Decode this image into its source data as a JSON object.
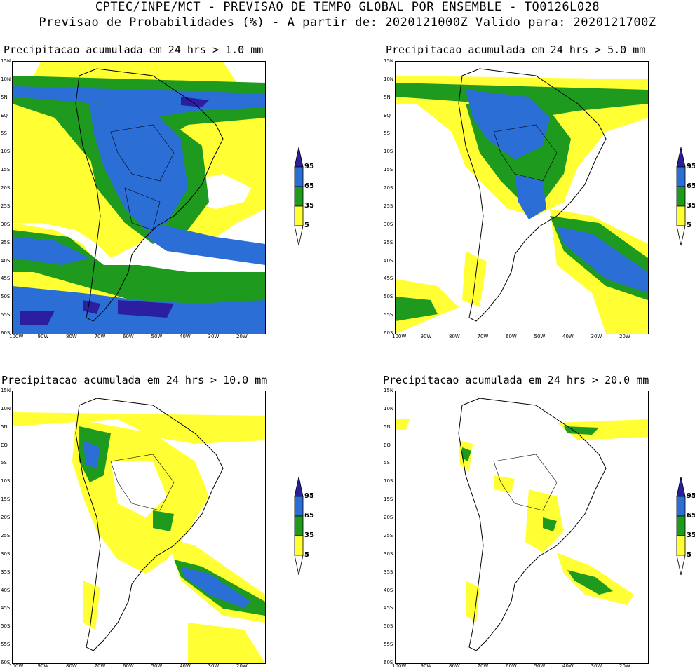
{
  "header": {
    "line1": "CPTEC/INPE/MCT - PREVISAO DE TEMPO GLOBAL POR ENSEMBLE - TQ0126L028",
    "line2": "Previsao de Probabilidades (%) -  A partir de: 2020121000Z  Valido para: 2020121700Z"
  },
  "colors": {
    "p5": "#ffff33",
    "p35": "#1e9a1e",
    "p65": "#2b6fd6",
    "p95": "#2b1fa0"
  },
  "axes": {
    "lat_ticks": [
      "15N",
      "10N",
      "5N",
      "EQ",
      "5S",
      "10S",
      "15S",
      "20S",
      "25S",
      "30S",
      "35S",
      "40S",
      "45S",
      "50S",
      "55S",
      "60S"
    ],
    "lon_ticks": [
      "100W",
      "90W",
      "80W",
      "70W",
      "60W",
      "50W",
      "40W",
      "30W",
      "20W"
    ]
  },
  "legend": {
    "labels": [
      "95",
      "65",
      "35",
      "5"
    ]
  },
  "panels": [
    {
      "title": "Precipitacao acumulada em 24 hrs > 1.0 mm"
    },
    {
      "title": "Precipitacao acumulada em 24 hrs > 5.0 mm"
    },
    {
      "title": "Precipitacao acumulada em 24 hrs > 10.0 mm"
    },
    {
      "title": "Precipitacao acumulada em 24 hrs > 20.0 mm"
    }
  ]
}
